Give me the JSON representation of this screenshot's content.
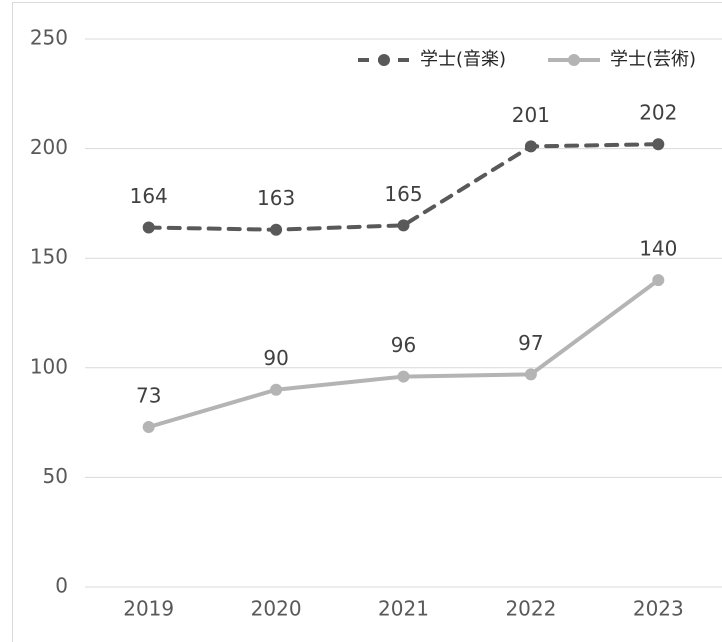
{
  "chart_data": {
    "type": "line",
    "categories": [
      "2019",
      "2020",
      "2021",
      "2022",
      "2023"
    ],
    "series": [
      {
        "name": "学士(音楽)",
        "color": "#595959",
        "dashed": true,
        "values": [
          164,
          163,
          165,
          201,
          202
        ]
      },
      {
        "name": "学士(芸術)",
        "color": "#b4b4b4",
        "dashed": false,
        "values": [
          73,
          90,
          96,
          97,
          140
        ]
      }
    ],
    "ylim": [
      0,
      250
    ],
    "yticks": [
      0,
      50,
      100,
      150,
      200,
      250
    ],
    "grid": true,
    "legend": "top-right"
  }
}
